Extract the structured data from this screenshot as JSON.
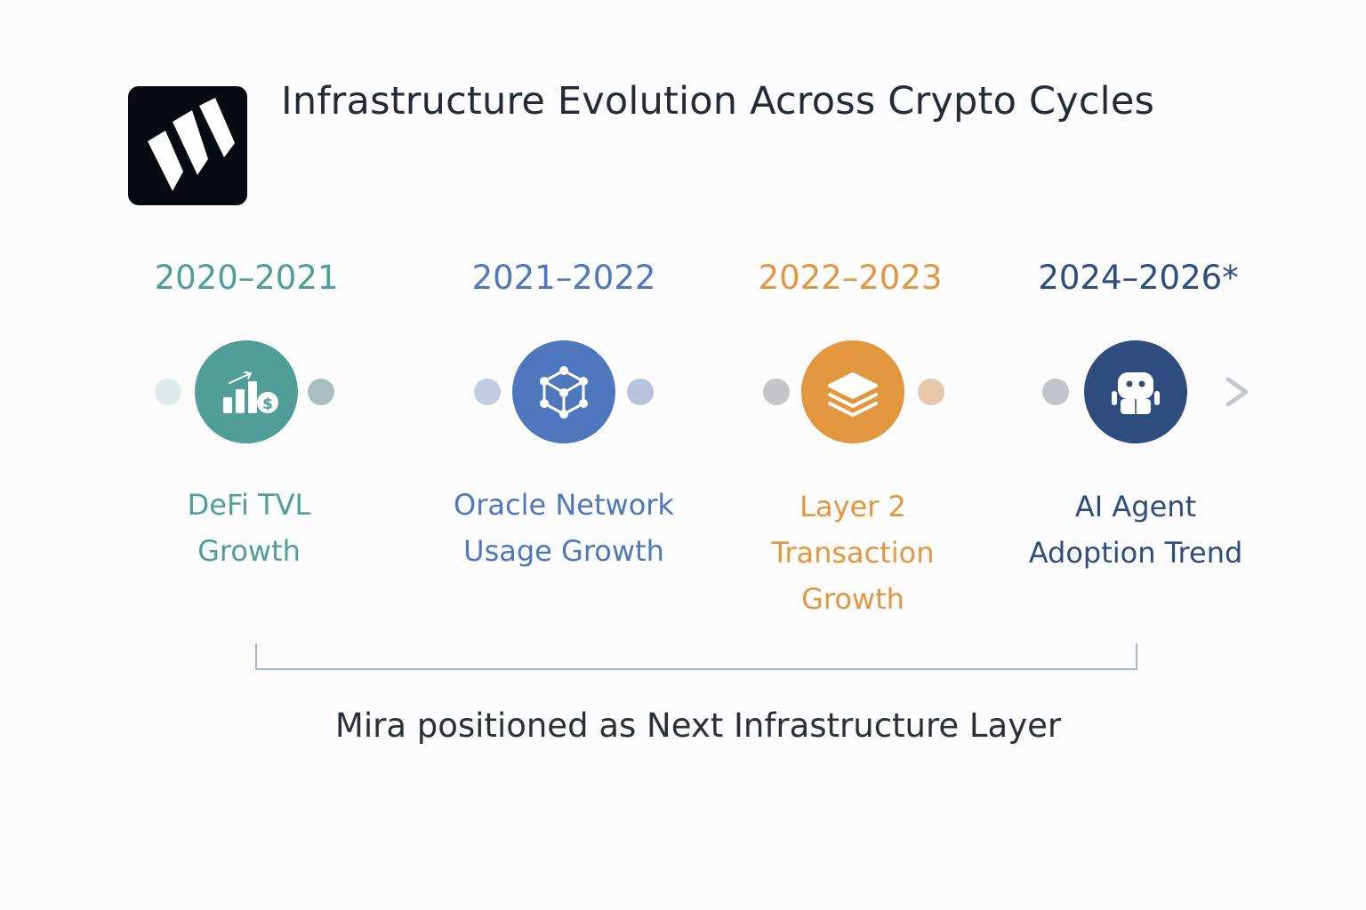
{
  "title": "Infrastructure Evolution Across Crypto Cycles",
  "logo": {
    "icon": "brand-logo-icon"
  },
  "eras": [
    {
      "year": "2020–2021",
      "label_lines": [
        "DeFi TVL",
        "Growth"
      ],
      "icon": "bar-chart-dollar-icon",
      "color": "#4f9e97"
    },
    {
      "year": "2021–2022",
      "label_lines": [
        "Oracle Network",
        "Usage Growth"
      ],
      "icon": "network-cube-icon",
      "color": "#4f77be"
    },
    {
      "year": "2022–2023",
      "label_lines": [
        "Layer 2",
        "Transaction",
        "Growth"
      ],
      "icon": "layers-stack-icon",
      "color": "#e2973f"
    },
    {
      "year": "2024–2026*",
      "label_lines": [
        "AI Agent",
        "Adoption Trend"
      ],
      "icon": "robot-icon",
      "color": "#2e4d7e"
    }
  ],
  "footer": "Mira positioned as Next Infrastructure Layer"
}
